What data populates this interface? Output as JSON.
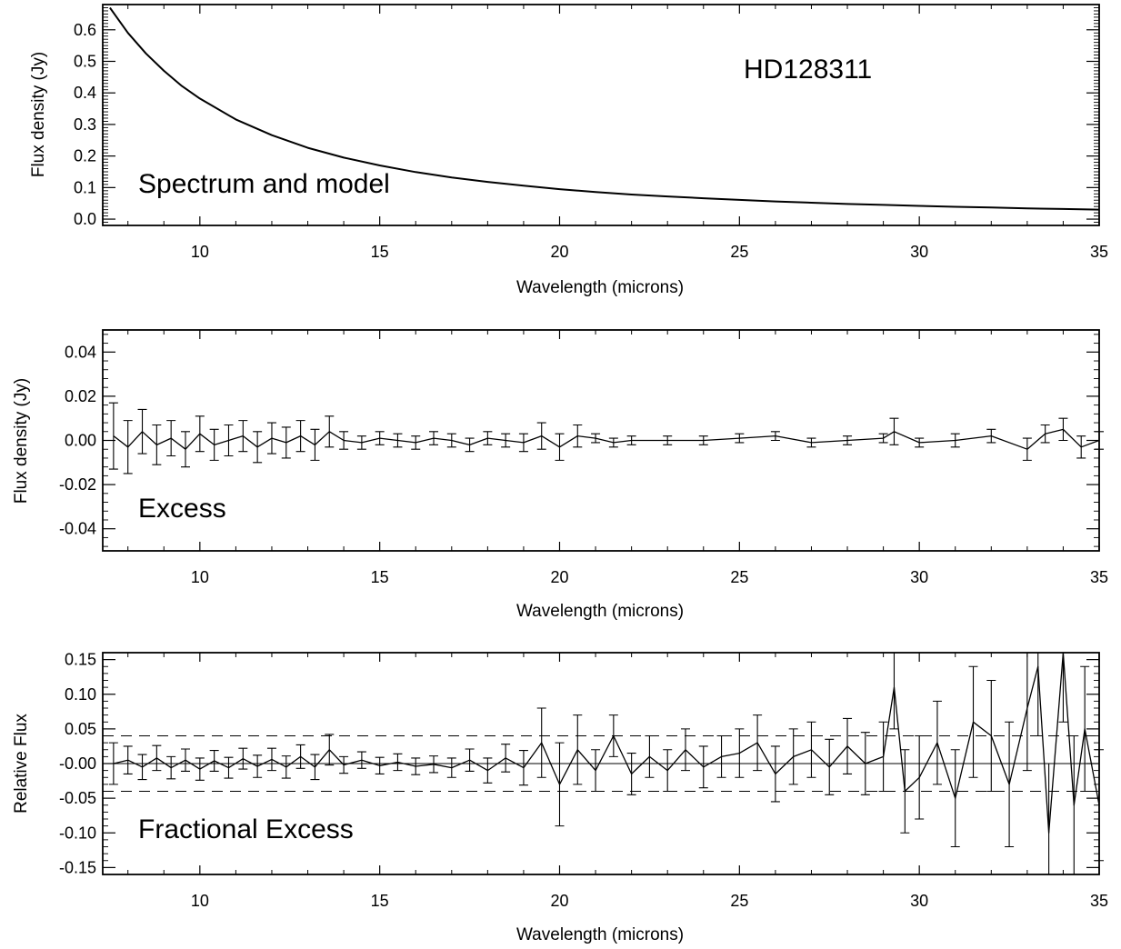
{
  "chart_data": [
    {
      "type": "line",
      "annotations": [
        "Spectrum and model",
        "HD128311"
      ],
      "xlabel": "Wavelength (microns)",
      "ylabel": "Flux density (Jy)",
      "xlim": [
        7.3,
        35
      ],
      "ylim": [
        -0.02,
        0.68
      ],
      "xticks": [
        10,
        15,
        20,
        25,
        30,
        35
      ],
      "xtick_labels": [
        "10",
        "15",
        "20",
        "25",
        "30",
        "35"
      ],
      "yticks": [
        0.0,
        0.1,
        0.2,
        0.3,
        0.4,
        0.5,
        0.6
      ],
      "ytick_labels": [
        "0.0",
        "0.1",
        "0.2",
        "0.3",
        "0.4",
        "0.5",
        "0.6"
      ],
      "series": [
        {
          "x": [
            7.5,
            8,
            8.5,
            9,
            9.5,
            10,
            11,
            12,
            13,
            14,
            15,
            16,
            17,
            18,
            19,
            20,
            21,
            22,
            23,
            24,
            25,
            26,
            27,
            28,
            29,
            30,
            31,
            32,
            33,
            34,
            35
          ],
          "values": [
            0.67,
            0.59,
            0.525,
            0.47,
            0.422,
            0.382,
            0.316,
            0.266,
            0.226,
            0.195,
            0.17,
            0.149,
            0.132,
            0.118,
            0.106,
            0.095,
            0.086,
            0.078,
            0.072,
            0.066,
            0.061,
            0.056,
            0.052,
            0.048,
            0.045,
            0.042,
            0.039,
            0.037,
            0.034,
            0.032,
            0.03
          ]
        }
      ]
    },
    {
      "type": "line",
      "annotations": [
        "Excess"
      ],
      "xlabel": "Wavelength (microns)",
      "ylabel": "Flux density (Jy)",
      "xlim": [
        7.3,
        35
      ],
      "ylim": [
        -0.05,
        0.05
      ],
      "xticks": [
        10,
        15,
        20,
        25,
        30,
        35
      ],
      "xtick_labels": [
        "10",
        "15",
        "20",
        "25",
        "30",
        "35"
      ],
      "yticks": [
        -0.04,
        -0.02,
        0.0,
        0.02,
        0.04
      ],
      "ytick_labels": [
        "-0.04",
        "-0.02",
        "0.00",
        "0.02",
        "0.04"
      ],
      "series": [
        {
          "x": [
            7.6,
            8.0,
            8.4,
            8.8,
            9.2,
            9.6,
            10.0,
            10.4,
            10.8,
            11.2,
            11.6,
            12.0,
            12.4,
            12.8,
            13.2,
            13.6,
            14.0,
            14.5,
            15.0,
            15.5,
            16.0,
            16.5,
            17.0,
            17.5,
            18.0,
            18.5,
            19.0,
            19.5,
            20.0,
            20.5,
            21.0,
            21.5,
            22.0,
            23.0,
            24.0,
            25.0,
            26.0,
            27.0,
            28.0,
            29.0,
            29.3,
            30.0,
            31.0,
            32.0,
            33.0,
            33.5,
            34.0,
            34.5,
            35.0
          ],
          "values": [
            0.002,
            -0.003,
            0.004,
            -0.002,
            0.001,
            -0.004,
            0.003,
            -0.002,
            0.0,
            0.002,
            -0.003,
            0.001,
            -0.001,
            0.002,
            -0.002,
            0.004,
            0.0,
            -0.001,
            0.001,
            0.0,
            -0.001,
            0.001,
            0.0,
            -0.002,
            0.001,
            0.0,
            -0.001,
            0.002,
            -0.003,
            0.002,
            0.001,
            -0.001,
            0.0,
            0.0,
            0.0,
            0.001,
            0.002,
            -0.001,
            0.0,
            0.001,
            0.004,
            -0.001,
            0.0,
            0.002,
            -0.004,
            0.003,
            0.005,
            -0.003,
            0.0
          ],
          "errors": [
            0.015,
            0.012,
            0.01,
            0.009,
            0.008,
            0.008,
            0.008,
            0.007,
            0.007,
            0.007,
            0.007,
            0.007,
            0.007,
            0.007,
            0.007,
            0.007,
            0.004,
            0.003,
            0.003,
            0.003,
            0.003,
            0.003,
            0.003,
            0.003,
            0.003,
            0.003,
            0.004,
            0.006,
            0.006,
            0.005,
            0.002,
            0.002,
            0.002,
            0.002,
            0.002,
            0.002,
            0.002,
            0.002,
            0.002,
            0.002,
            0.006,
            0.002,
            0.003,
            0.003,
            0.005,
            0.004,
            0.005,
            0.005,
            0.004
          ]
        }
      ]
    },
    {
      "type": "line",
      "annotations": [
        "Fractional Excess"
      ],
      "xlabel": "Wavelength (microns)",
      "ylabel": "Relative Flux",
      "xlim": [
        7.3,
        35
      ],
      "ylim": [
        -0.16,
        0.16
      ],
      "xticks": [
        10,
        15,
        20,
        25,
        30,
        35
      ],
      "xtick_labels": [
        "10",
        "15",
        "20",
        "25",
        "30",
        "35"
      ],
      "yticks": [
        -0.15,
        -0.1,
        -0.05,
        0.0,
        0.05,
        0.1,
        0.15
      ],
      "ytick_labels": [
        "-0.15",
        "-0.10",
        "-0.05",
        "-0.00",
        "0.05",
        "0.10",
        "0.15"
      ],
      "reference_lines": [
        0.04,
        -0.04
      ],
      "zero_line": 0,
      "series": [
        {
          "x": [
            7.6,
            8.0,
            8.4,
            8.8,
            9.2,
            9.6,
            10.0,
            10.4,
            10.8,
            11.2,
            11.6,
            12.0,
            12.4,
            12.8,
            13.2,
            13.6,
            14.0,
            14.5,
            15.0,
            15.5,
            16.0,
            16.5,
            17.0,
            17.5,
            18.0,
            18.5,
            19.0,
            19.5,
            20.0,
            20.5,
            21.0,
            21.5,
            22.0,
            22.5,
            23.0,
            23.5,
            24.0,
            24.5,
            25.0,
            25.5,
            26.0,
            26.5,
            27.0,
            27.5,
            28.0,
            28.5,
            29.0,
            29.3,
            29.6,
            30.0,
            30.5,
            31.0,
            31.5,
            32.0,
            32.5,
            33.0,
            33.3,
            33.6,
            34.0,
            34.3,
            34.6,
            35.0
          ],
          "values": [
            0.0,
            0.005,
            -0.005,
            0.008,
            -0.006,
            0.005,
            -0.008,
            0.004,
            -0.006,
            0.007,
            -0.004,
            0.006,
            -0.005,
            0.01,
            -0.005,
            0.02,
            -0.002,
            0.005,
            -0.003,
            0.002,
            -0.004,
            -0.001,
            -0.006,
            0.005,
            -0.01,
            0.008,
            -0.006,
            0.03,
            -0.03,
            0.02,
            -0.01,
            0.04,
            -0.015,
            0.01,
            -0.01,
            0.02,
            -0.005,
            0.01,
            0.015,
            0.03,
            -0.015,
            0.01,
            0.02,
            -0.005,
            0.025,
            0.0,
            0.01,
            0.11,
            -0.04,
            -0.02,
            0.03,
            -0.05,
            0.06,
            0.04,
            -0.03,
            0.08,
            0.14,
            -0.1,
            0.16,
            -0.06,
            0.05,
            -0.06
          ],
          "errors": [
            0.03,
            0.02,
            0.018,
            0.018,
            0.016,
            0.016,
            0.016,
            0.015,
            0.015,
            0.015,
            0.016,
            0.016,
            0.016,
            0.017,
            0.018,
            0.022,
            0.012,
            0.012,
            0.012,
            0.012,
            0.012,
            0.012,
            0.014,
            0.016,
            0.018,
            0.02,
            0.025,
            0.05,
            0.06,
            0.05,
            0.03,
            0.03,
            0.03,
            0.03,
            0.03,
            0.03,
            0.03,
            0.03,
            0.035,
            0.04,
            0.04,
            0.04,
            0.04,
            0.04,
            0.04,
            0.045,
            0.05,
            0.06,
            0.06,
            0.06,
            0.06,
            0.07,
            0.08,
            0.08,
            0.09,
            0.09,
            0.1,
            0.1,
            0.1,
            0.1,
            0.09,
            0.08
          ]
        }
      ]
    }
  ]
}
